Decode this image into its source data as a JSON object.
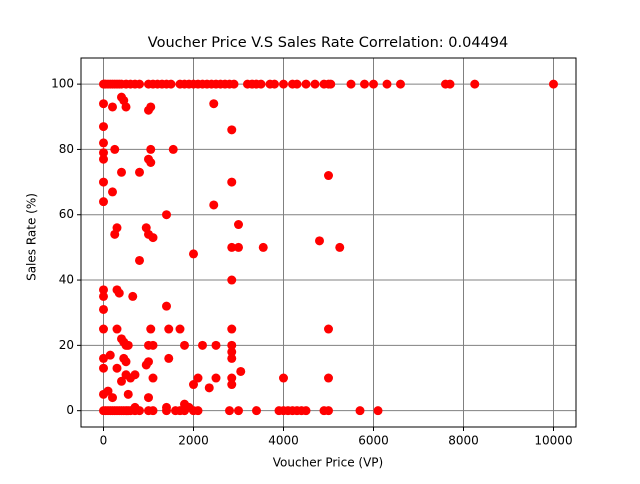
{
  "chart_data": {
    "type": "scatter",
    "title": "Voucher Price V.S Sales Rate Correlation: 0.04494",
    "x_label": "Voucher Price (VP)",
    "y_label": "Sales Rate (%)",
    "color": "#ff0000",
    "grid": true,
    "xlim": [
      -500,
      10500
    ],
    "ylim": [
      -5,
      108
    ],
    "xticks": [
      0,
      2000,
      4000,
      6000,
      8000,
      10000
    ],
    "yticks": [
      0,
      20,
      40,
      60,
      80,
      100
    ],
    "x": [
      0,
      20,
      50,
      100,
      150,
      200,
      250,
      300,
      350,
      400,
      500,
      600,
      700,
      800,
      1000,
      1100,
      1200,
      1300,
      1400,
      1500,
      1700,
      1800,
      1900,
      2000,
      2100,
      2200,
      2300,
      2400,
      2500,
      2600,
      2700,
      2800,
      2900,
      3200,
      3300,
      3400,
      3500,
      3700,
      3800,
      4000,
      4200,
      4300,
      4500,
      4700,
      4900,
      5000,
      5050,
      5500,
      5800,
      6000,
      6300,
      6600,
      7600,
      7700,
      8250,
      10000,
      0,
      50,
      100,
      150,
      200,
      250,
      300,
      350,
      400,
      450,
      500,
      550,
      600,
      700,
      800,
      1000,
      1100,
      1400,
      1600,
      1700,
      1800,
      2000,
      2100,
      2800,
      3000,
      3400,
      3900,
      4000,
      4100,
      4200,
      4300,
      4400,
      4500,
      4900,
      5000,
      5700,
      6100,
      0,
      0,
      0,
      0,
      0,
      0,
      0,
      0,
      0,
      0,
      0,
      0,
      0,
      0,
      100,
      150,
      200,
      200,
      250,
      250,
      300,
      300,
      350,
      300,
      300,
      200,
      400,
      400,
      450,
      500,
      400,
      450,
      500,
      550,
      450,
      500,
      400,
      500,
      550,
      600,
      650,
      700,
      700,
      800,
      800,
      1000,
      1050,
      1000,
      1050,
      1050,
      950,
      1000,
      1100,
      950,
      1000,
      1000,
      1050,
      1100,
      1100,
      1000,
      1400,
      1400,
      1450,
      1450,
      1400,
      1550,
      1700,
      1800,
      1800,
      1900,
      2000,
      2000,
      2100,
      2200,
      2350,
      2450,
      2450,
      2500,
      2500,
      2850,
      2850,
      2850,
      2850,
      2850,
      2850,
      2850,
      2850,
      2850,
      2850,
      3000,
      3000,
      3050,
      3550,
      4000,
      4800,
      5000,
      5000,
      5000,
      5250
    ],
    "y": [
      100,
      100,
      100,
      100,
      100,
      100,
      100,
      100,
      100,
      100,
      100,
      100,
      100,
      100,
      100,
      100,
      100,
      100,
      100,
      100,
      100,
      100,
      100,
      100,
      100,
      100,
      100,
      100,
      100,
      100,
      100,
      100,
      100,
      100,
      100,
      100,
      100,
      100,
      100,
      100,
      100,
      100,
      100,
      100,
      100,
      100,
      100,
      100,
      100,
      100,
      100,
      100,
      100,
      100,
      100,
      100,
      0,
      0,
      0,
      0,
      0,
      0,
      0,
      0,
      0,
      0,
      0,
      0,
      0,
      0,
      0,
      0,
      0,
      0,
      0,
      0,
      0,
      0,
      0,
      0,
      0,
      0,
      0,
      0,
      0,
      0,
      0,
      0,
      0,
      0,
      0,
      0,
      0,
      94,
      87,
      82,
      79,
      77,
      70,
      64,
      37,
      35,
      31,
      25,
      16,
      13,
      5,
      6,
      17,
      67,
      93,
      80,
      54,
      56,
      37,
      36,
      25,
      13,
      4,
      73,
      96,
      95,
      93,
      22,
      21,
      20,
      20,
      16,
      15,
      9,
      11,
      5,
      10,
      35,
      11,
      1,
      46,
      73,
      92,
      93,
      77,
      76,
      80,
      56,
      54,
      53,
      14,
      15,
      20,
      25,
      20,
      10,
      4,
      60,
      32,
      25,
      16,
      1,
      80,
      25,
      20,
      2,
      1,
      48,
      8,
      10,
      20,
      7,
      94,
      63,
      20,
      10,
      86,
      70,
      50,
      40,
      25,
      20,
      18,
      16,
      10,
      8,
      57,
      50,
      12,
      50,
      10,
      52,
      72,
      25,
      10,
      50
    ]
  }
}
